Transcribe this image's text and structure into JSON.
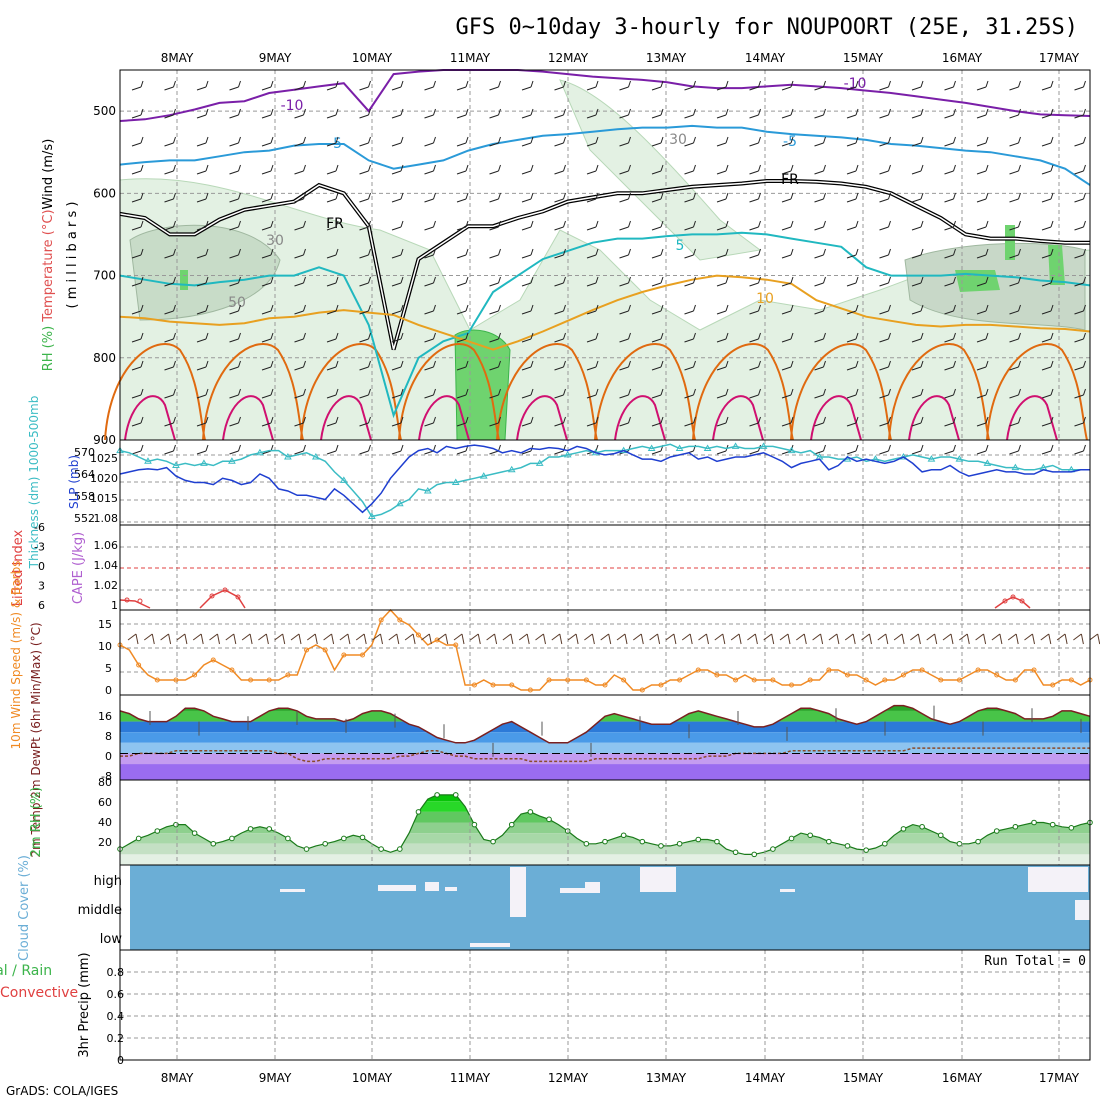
{
  "title": "GFS 0~10day 3-hourly for NOUPOORT (25E, 31.25S)",
  "credit": "GrADS: COLA/IGES",
  "dates": [
    "8MAY",
    "9MAY",
    "10MAY",
    "11MAY",
    "12MAY",
    "13MAY",
    "14MAY",
    "15MAY",
    "16MAY",
    "17MAY"
  ],
  "colors": {
    "wind_label": "#e05050",
    "temp_label": "#ff8c00",
    "rh_green": "#3cb44b",
    "slp_blue": "#1f3fd0",
    "thickness_cyan": "#3bbcc4",
    "cape_purple": "#b060d0",
    "lifted_red": "#e04040",
    "wind_orange": "#f08a24",
    "dewpt_brown": "#8b4a2a",
    "cloud_blue": "#6baed6",
    "precip_green": "#3cb44b",
    "precip_red": "#e04040"
  },
  "chart_data": [
    {
      "type": "heatmap",
      "panel": "upper-air",
      "ylabel_parts": [
        "Wind (m/s)",
        "Temperature (°C)",
        "RH (%)"
      ],
      "ylabel_unit": "( m i l l i b a r s )",
      "ylim": [
        900,
        450
      ],
      "yticks": [
        500,
        600,
        700,
        800,
        900
      ],
      "contour_labels": [
        "-10",
        "-10",
        "-5",
        "-5",
        "FR",
        "FR",
        "5",
        "10",
        "30",
        "30",
        "50"
      ],
      "isotherms": [
        {
          "name": "-10",
          "color": "#7a1fa8",
          "values": [
            512,
            510,
            505,
            498,
            490,
            488,
            478,
            474,
            470,
            466,
            500,
            455,
            452,
            450,
            450,
            450,
            450,
            452,
            455,
            458,
            460,
            462,
            465,
            470,
            472,
            472,
            470,
            468,
            470,
            472,
            475,
            478,
            482,
            486,
            490,
            495,
            500,
            504,
            505,
            506
          ]
        },
        {
          "name": "-5",
          "color": "#2a9ad8",
          "values": [
            565,
            562,
            560,
            560,
            555,
            550,
            548,
            542,
            540,
            540,
            560,
            570,
            565,
            560,
            548,
            540,
            535,
            530,
            528,
            525,
            522,
            520,
            520,
            518,
            520,
            520,
            525,
            528,
            530,
            532,
            535,
            540,
            542,
            545,
            548,
            550,
            555,
            560,
            570,
            590
          ]
        },
        {
          "name": "FR",
          "color": "#101010",
          "values": [
            625,
            630,
            650,
            650,
            632,
            620,
            615,
            610,
            590,
            600,
            640,
            790,
            680,
            660,
            640,
            640,
            630,
            622,
            610,
            605,
            600,
            600,
            596,
            592,
            590,
            588,
            585,
            585,
            586,
            588,
            592,
            600,
            615,
            630,
            650,
            655,
            655,
            658,
            660,
            660
          ]
        },
        {
          "name": "5",
          "color": "#20b8c0",
          "values": [
            700,
            705,
            710,
            712,
            708,
            705,
            700,
            700,
            690,
            700,
            760,
            870,
            800,
            780,
            770,
            720,
            700,
            680,
            670,
            660,
            655,
            655,
            652,
            650,
            650,
            648,
            650,
            655,
            660,
            665,
            690,
            700,
            700,
            700,
            698,
            700,
            702,
            706,
            708,
            712
          ]
        },
        {
          "name": "10",
          "color": "#e8a020",
          "values": [
            750,
            752,
            756,
            758,
            760,
            758,
            752,
            750,
            745,
            742,
            745,
            748,
            760,
            770,
            780,
            790,
            780,
            768,
            755,
            742,
            730,
            720,
            712,
            705,
            700,
            702,
            705,
            710,
            730,
            740,
            750,
            755,
            760,
            762,
            760,
            760,
            762,
            764,
            765,
            768
          ]
        }
      ],
      "rh_blobs": [
        "light-green wide band",
        "bright green 11MAY low levels",
        "grey 80% patches 16MAY-17MAY"
      ]
    },
    {
      "type": "line",
      "panel": "slp-thickness",
      "ylabel_left": "Thickness (dm) 1000-500mb",
      "ylabel_right": "SLP (mb)",
      "yticks_left": [
        "570",
        "564",
        "558",
        "552"
      ],
      "yticks_right": [
        "1025",
        "1020",
        "1015",
        "1.08"
      ],
      "ylim": [
        1008,
        1028
      ],
      "series": [
        {
          "name": "SLP (mb)",
          "values": [
            1020.0,
            1020.5,
            1021.0,
            1021.2,
            1021.0,
            1021.5,
            1019.5,
            1018.5,
            1018.0,
            1018.0,
            1017.5,
            1019.0,
            1018.5,
            1017.5,
            1018.0,
            1020.0,
            1019.0,
            1016.5,
            1016.0,
            1015.0,
            1015.0,
            1014.5,
            1014.0,
            1016.5,
            1015.0,
            1013.0,
            1011.0,
            1013.0,
            1015.5,
            1019.0,
            1021.5,
            1024.0,
            1025.5,
            1026.0,
            1025.0,
            1026.5,
            1026.0,
            1026.5,
            1026.8,
            1026.5,
            1026.0,
            1025.0,
            1025.5,
            1025.0,
            1026.0,
            1025.8,
            1026.2,
            1026.0,
            1025.5,
            1026.5,
            1026.0,
            1025.0,
            1024.5,
            1024.8,
            1025.5,
            1024.5,
            1023.5,
            1023.5,
            1023.0,
            1024.0,
            1024.5,
            1025.0,
            1023.5,
            1024.0,
            1023.0,
            1023.5,
            1024.0,
            1024.0,
            1024.5,
            1025.0,
            1024.0,
            1023.0,
            1021.5,
            1022.5,
            1023.0,
            1023.5,
            1021.0,
            1022.0,
            1024.0,
            1023.0,
            1023.5,
            1023.0,
            1022.5,
            1023.0,
            1024.0,
            1022.5,
            1020.5,
            1021.0,
            1021.0,
            1022.0,
            1020.5,
            1019.5,
            1020.0,
            1020.5,
            1021.0,
            1020.5,
            1020.5,
            1020.0,
            1020.0,
            1021.0,
            1020.5,
            1020.5,
            1020.5,
            1021.0,
            1021.0
          ]
        },
        {
          "name": "Thickness (dm)",
          "values": [
            1025.5,
            1025.0,
            1024.0,
            1023.0,
            1023.5,
            1023.0,
            1022.0,
            1022.5,
            1022.0,
            1022.5,
            1022.0,
            1023.0,
            1023.0,
            1023.5,
            1024.5,
            1025.0,
            1025.5,
            1025.5,
            1024.0,
            1024.5,
            1025.0,
            1024.0,
            1023.0,
            1020.5,
            1018.5,
            1016.0,
            1013.5,
            1010.0,
            1010.5,
            1011.5,
            1013.0,
            1014.0,
            1016.5,
            1016.0,
            1017.5,
            1018.0,
            1018.0,
            1018.5,
            1019.0,
            1019.5,
            1020.0,
            1020.5,
            1021.0,
            1021.5,
            1022.5,
            1022.5,
            1024.0,
            1024.0,
            1024.5,
            1025.0,
            1025.5,
            1025.0,
            1025.5,
            1025.5,
            1025.5,
            1026.0,
            1026.5,
            1026.0,
            1026.5,
            1027.0,
            1026.0,
            1026.5,
            1026.5,
            1026.0,
            1026.5,
            1026.0,
            1026.5,
            1026.0,
            1026.0,
            1026.5,
            1026.5,
            1026.0,
            1025.5,
            1025.0,
            1025.5,
            1024.0,
            1024.0,
            1023.5,
            1023.5,
            1024.0,
            1023.0,
            1023.5,
            1023.0,
            1023.5,
            1024.0,
            1024.5,
            1024.0,
            1023.5,
            1024.0,
            1024.0,
            1023.5,
            1023.0,
            1023.0,
            1022.5,
            1022.0,
            1021.5,
            1021.5,
            1021.0,
            1021.0,
            1021.5,
            1022.0,
            1021.0,
            1021.0,
            1021.0,
            1021.0
          ]
        }
      ]
    },
    {
      "type": "line",
      "panel": "cape-lifted",
      "ylabel_left": "Lifted Index",
      "ylabel_right": "CAPE (J/kg)",
      "yticks_left": [
        "-6",
        "-3",
        "0",
        "3",
        "6"
      ],
      "yticks_right": [
        "1.06",
        "1.04",
        "1.02",
        "1"
      ],
      "series": [
        {
          "name": "CAPE (J/kg)",
          "values": [
            1.008,
            1.007,
            1.002,
            1.0,
            1.0,
            1.01,
            1.018,
            1.012,
            1.0,
            1.0
          ]
        }
      ]
    },
    {
      "type": "line",
      "panel": "wind10m",
      "ylabel_left": "10m Wind Speed (m/s) & Barbs",
      "yticks": [
        "15",
        "10",
        "5",
        "0"
      ],
      "ylim": [
        0,
        17
      ],
      "series": [
        {
          "name": "10m Wind Speed",
          "values": [
            10,
            9,
            6,
            4,
            3,
            3,
            3,
            3,
            4,
            6,
            7,
            6,
            5,
            3,
            3,
            3,
            3,
            3,
            4,
            4,
            9,
            10,
            9,
            5,
            8,
            8,
            8,
            10,
            15,
            17,
            15,
            14,
            12,
            10,
            11,
            10,
            10,
            2,
            2,
            3,
            2,
            2,
            2,
            1,
            1,
            1,
            3,
            3,
            3,
            3,
            3,
            2,
            2,
            4,
            3,
            1,
            1,
            2,
            2,
            3,
            3,
            4,
            5,
            5,
            4,
            4,
            3,
            4,
            3,
            3,
            3,
            2,
            2,
            2,
            3,
            3,
            5,
            5,
            4,
            4,
            3,
            2,
            3,
            3,
            4,
            5,
            5,
            4,
            3,
            3,
            3,
            4,
            5,
            5,
            4,
            3,
            3,
            5,
            5,
            2,
            2,
            3,
            3,
            2,
            3
          ]
        }
      ]
    },
    {
      "type": "area",
      "panel": "temp2m",
      "ylabel_left": "2m Temp 2m DewPt (6hr Min/Max) (°C)",
      "yticks": [
        "16",
        "8",
        "0",
        "-8"
      ],
      "ylim": [
        -10,
        22
      ],
      "series": [
        {
          "name": "2m Temp",
          "values": [
            16,
            15,
            13,
            12,
            12,
            12,
            14,
            17,
            17,
            16,
            14,
            13,
            12,
            12,
            12,
            14,
            16,
            17,
            17,
            16,
            14,
            13,
            13,
            13,
            12,
            13,
            15,
            16,
            16,
            15,
            13,
            11,
            10,
            8,
            6,
            5,
            4,
            4,
            5,
            7,
            9,
            11,
            12,
            10,
            8,
            6,
            4,
            4,
            4,
            6,
            8,
            11,
            14,
            15,
            14,
            13,
            12,
            11,
            11,
            11,
            13,
            15,
            16,
            15,
            14,
            13,
            12,
            11,
            10,
            10,
            11,
            13,
            15,
            17,
            17,
            16,
            15,
            13,
            12,
            11,
            12,
            14,
            16,
            18,
            18,
            17,
            15,
            13,
            12,
            11,
            12,
            14,
            16,
            17,
            17,
            16,
            15,
            13,
            13,
            13,
            14,
            16,
            16,
            15,
            14
          ]
        },
        {
          "name": "2m DewPt",
          "values": [
            -1,
            -1,
            0,
            0,
            0,
            0,
            1,
            1,
            1,
            1,
            1,
            1,
            1,
            1,
            1,
            1,
            1,
            0,
            0,
            -2,
            -3,
            -3,
            -2,
            -2,
            -2,
            -2,
            -2,
            -2,
            -2,
            -2,
            -1,
            -1,
            0,
            1,
            1,
            0,
            -1,
            -1,
            -2,
            -2,
            -2,
            -2,
            -2,
            -2,
            -3,
            -3,
            -3,
            -3,
            -3,
            -3,
            -3,
            -2,
            -2,
            -2,
            -2,
            -2,
            -2,
            -2,
            -2,
            -2,
            -2,
            -2,
            -2,
            -1,
            -1,
            -1,
            0,
            0,
            0,
            0,
            0,
            0,
            1,
            1,
            1,
            1,
            1,
            1,
            1,
            1,
            1,
            1,
            1,
            1,
            1,
            2,
            2,
            2,
            2,
            2,
            2,
            2,
            2,
            2,
            2,
            2,
            2,
            2,
            2,
            2,
            2,
            2,
            2,
            2,
            2
          ]
        }
      ]
    },
    {
      "type": "area",
      "panel": "rh2m",
      "ylabel_left": "2m RH (%)",
      "yticks": [
        "80",
        "60",
        "40",
        "20"
      ],
      "ylim": [
        10,
        90
      ],
      "series": [
        {
          "name": "2m RH",
          "values": [
            25,
            30,
            35,
            38,
            42,
            46,
            48,
            48,
            40,
            35,
            30,
            32,
            35,
            40,
            44,
            46,
            44,
            40,
            35,
            28,
            25,
            28,
            30,
            32,
            35,
            38,
            36,
            30,
            25,
            22,
            25,
            40,
            60,
            72,
            76,
            76,
            76,
            65,
            48,
            34,
            32,
            38,
            48,
            58,
            60,
            56,
            53,
            48,
            42,
            35,
            30,
            30,
            32,
            35,
            38,
            36,
            32,
            30,
            28,
            28,
            30,
            32,
            34,
            34,
            32,
            25,
            22,
            20,
            20,
            22,
            25,
            30,
            35,
            40,
            38,
            36,
            32,
            30,
            28,
            25,
            24,
            26,
            30,
            38,
            44,
            48,
            46,
            42,
            38,
            32,
            30,
            30,
            32,
            38,
            42,
            44,
            46,
            48,
            50,
            50,
            48,
            46,
            45,
            48,
            50
          ]
        }
      ]
    },
    {
      "type": "heatmap",
      "panel": "cloud",
      "ylabel_left": "Cloud Cover (%)",
      "yticks": [
        "high",
        "middle",
        "low"
      ]
    },
    {
      "type": "bar",
      "panel": "precip",
      "ylabel_left": "Total / Rain Convective",
      "ylabel_right": "3hr Precip (mm)",
      "yticks": [
        "0.8",
        "0.6",
        "0.4",
        "0.2",
        "0"
      ],
      "ylim": [
        0,
        1
      ],
      "annotation": "Run Total = 0",
      "values": []
    }
  ]
}
